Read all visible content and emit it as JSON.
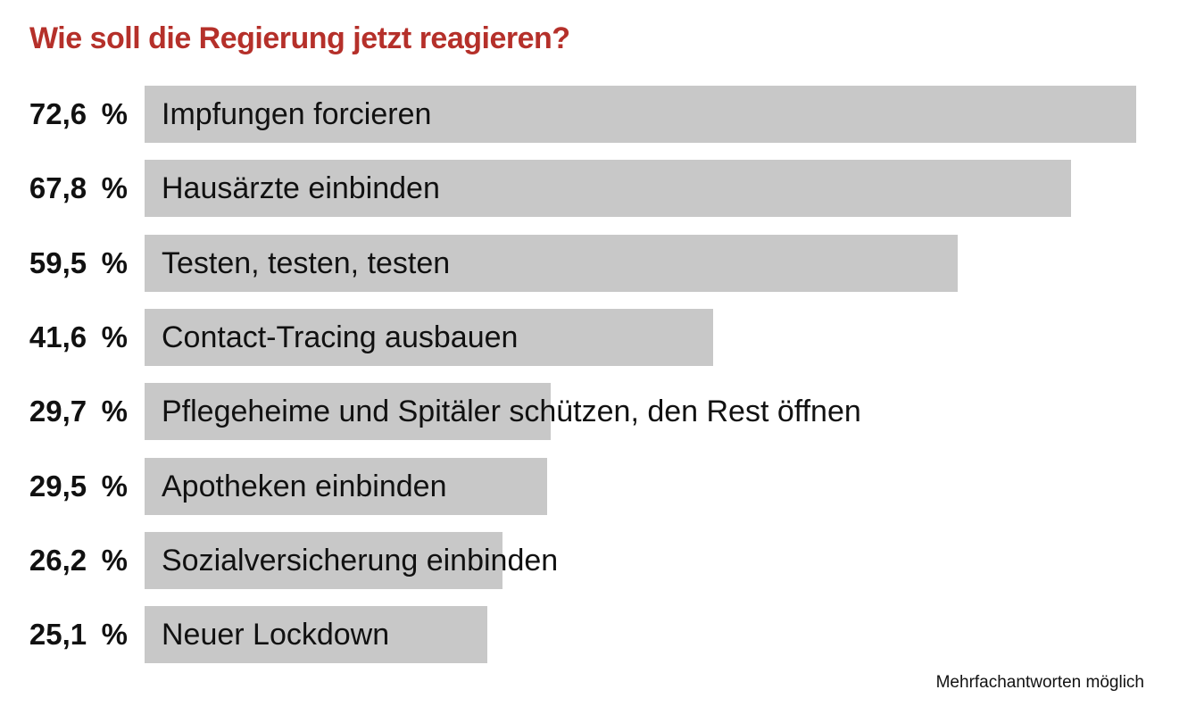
{
  "chart_data": {
    "type": "bar",
    "orientation": "horizontal",
    "title": "Wie soll die Regierung jetzt reagieren?",
    "footnote": "Mehrfachantworten möglich",
    "unit": "%",
    "xlim": [
      0,
      72.6
    ],
    "grid": false,
    "legend": "none",
    "bar_color": "#c8c8c8",
    "title_color": "#b5302a",
    "categories": [
      "Impfungen forcieren",
      "Hausärzte einbinden",
      "Testen, testen, testen",
      "Contact-Tracing ausbauen",
      "Pflegeheime und Spitäler schützen, den Rest öffnen",
      "Apotheken einbinden",
      "Sozialversicherung einbinden",
      "Neuer Lockdown"
    ],
    "values": [
      72.6,
      67.8,
      59.5,
      41.6,
      29.7,
      29.5,
      26.2,
      25.1
    ],
    "value_labels": [
      "72,6",
      "67,8",
      "59,5",
      "41,6",
      "29,7",
      "29,5",
      "26,2",
      "25,1"
    ]
  }
}
